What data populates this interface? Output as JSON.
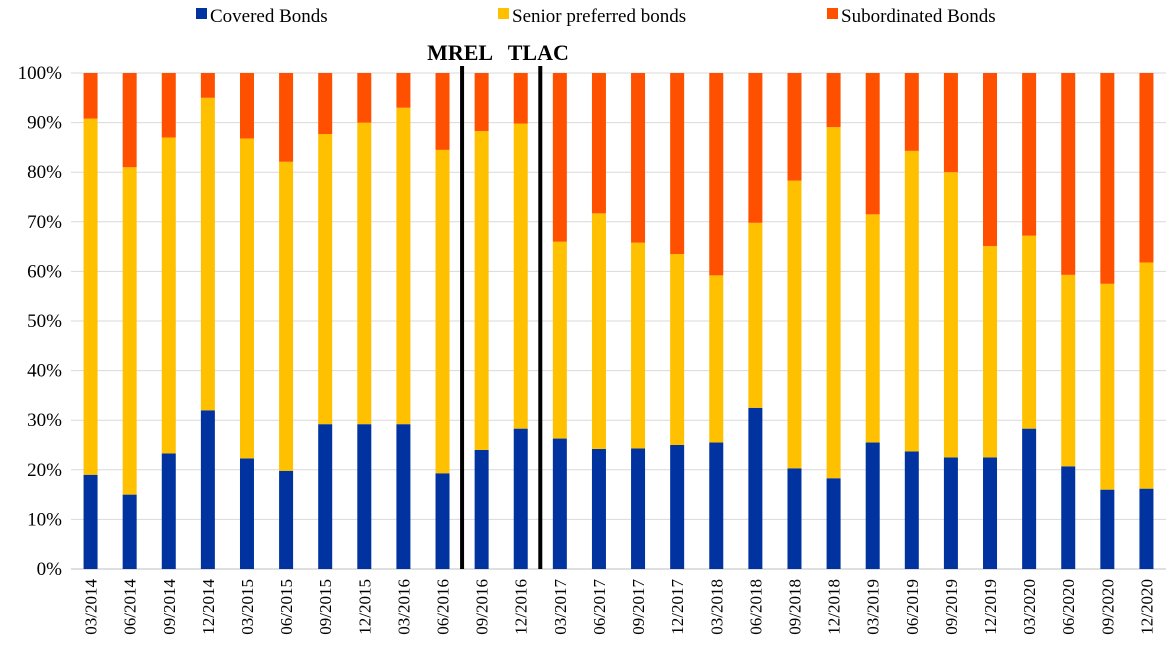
{
  "chart_data": {
    "type": "bar",
    "stacked": true,
    "percent_stacked": true,
    "categories": [
      "03/2014",
      "06/2014",
      "09/2014",
      "12/2014",
      "03/2015",
      "06/2015",
      "09/2015",
      "12/2015",
      "03/2016",
      "06/2016",
      "09/2016",
      "12/2016",
      "03/2017",
      "06/2017",
      "09/2017",
      "12/2017",
      "03/2018",
      "06/2018",
      "09/2018",
      "12/2018",
      "03/2019",
      "06/2019",
      "09/2019",
      "12/2019",
      "03/2020",
      "06/2020",
      "09/2020",
      "12/2020"
    ],
    "series": [
      {
        "name": "Covered Bonds",
        "color": "#0033a0",
        "values": [
          19,
          15,
          23.3,
          32,
          22.3,
          19.8,
          29.2,
          29.2,
          29.2,
          19.3,
          24,
          28.3,
          26.3,
          24.2,
          24.3,
          25,
          25.5,
          32.5,
          20.3,
          18.3,
          25.5,
          23.7,
          22.5,
          22.5,
          28.3,
          20.7,
          16,
          16.2
        ]
      },
      {
        "name": "Senior preferred bonds",
        "color": "#ffc000",
        "values": [
          71.8,
          66,
          63.7,
          63,
          64.5,
          62.3,
          58.5,
          60.8,
          63.8,
          65.2,
          64.3,
          61.5,
          39.7,
          47.5,
          41.5,
          38.5,
          33.7,
          37.3,
          58,
          70.8,
          46,
          60.6,
          57.5,
          42.6,
          38.9,
          38.6,
          41.5,
          45.6
        ]
      },
      {
        "name": "Subordinated Bonds",
        "color": "#ff5000",
        "values": [
          9.2,
          19,
          13,
          5,
          13.2,
          17.9,
          12.3,
          10,
          7,
          15.5,
          11.7,
          10.2,
          34,
          28.3,
          34.2,
          36.5,
          40.8,
          30.2,
          21.7,
          10.9,
          28.5,
          15.7,
          20,
          34.9,
          32.8,
          40.7,
          42.5,
          38.2
        ]
      }
    ],
    "ylim": [
      0,
      100
    ],
    "yticks": [
      "0%",
      "10%",
      "20%",
      "30%",
      "40%",
      "50%",
      "60%",
      "70%",
      "80%",
      "90%",
      "100%"
    ],
    "grid": true,
    "legend_position": "top",
    "annotations": [
      {
        "label": "MREL",
        "between": [
          "06/2016",
          "09/2016"
        ]
      },
      {
        "label": "TLAC",
        "between": [
          "12/2016",
          "03/2017"
        ]
      }
    ]
  }
}
